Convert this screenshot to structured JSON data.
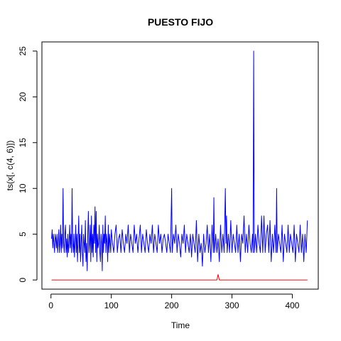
{
  "chart_data": {
    "type": "line",
    "title": "PUESTO FIJO",
    "xlabel": "Time",
    "ylabel": "ts(x[, c(4, 6)])",
    "xlim": [
      -15,
      443
    ],
    "ylim": [
      -1,
      26
    ],
    "x_ticks": [
      0,
      100,
      200,
      300,
      400
    ],
    "y_ticks": [
      0,
      5,
      10,
      15,
      20,
      25
    ],
    "n": 425,
    "series": [
      {
        "color": "#0000ff",
        "keypoints": [
          [
            1,
            4.5
          ],
          [
            2,
            5.5
          ],
          [
            3,
            3.5
          ],
          [
            4,
            5
          ],
          [
            5,
            4
          ],
          [
            6,
            3
          ],
          [
            7,
            5
          ],
          [
            8,
            4.5
          ],
          [
            9,
            3.5
          ],
          [
            10,
            5
          ],
          [
            11,
            3
          ],
          [
            12,
            4
          ],
          [
            13,
            5.5
          ],
          [
            14,
            3
          ],
          [
            15,
            4
          ],
          [
            16,
            6
          ],
          [
            17,
            3
          ],
          [
            18,
            5
          ],
          [
            19,
            3.5
          ],
          [
            20,
            10
          ],
          [
            21,
            4
          ],
          [
            22,
            3
          ],
          [
            23,
            5
          ],
          [
            24,
            6
          ],
          [
            25,
            3
          ],
          [
            26,
            4.5
          ],
          [
            27,
            2.5
          ],
          [
            28,
            5
          ],
          [
            29,
            3
          ],
          [
            30,
            4
          ],
          [
            31,
            6
          ],
          [
            32,
            3.5
          ],
          [
            33,
            5
          ],
          [
            34,
            3
          ],
          [
            35,
            10
          ],
          [
            36,
            4
          ],
          [
            37,
            3
          ],
          [
            38,
            5
          ],
          [
            39,
            2.5
          ],
          [
            40,
            4
          ],
          [
            41,
            6
          ],
          [
            42,
            3
          ],
          [
            43,
            5
          ],
          [
            44,
            2
          ],
          [
            45,
            4.5
          ],
          [
            46,
            7
          ],
          [
            47,
            3
          ],
          [
            48,
            5
          ],
          [
            49,
            2
          ],
          [
            50,
            4
          ],
          [
            51,
            6
          ],
          [
            52,
            3
          ],
          [
            53,
            1.5
          ],
          [
            54,
            5
          ],
          [
            55,
            4
          ],
          [
            56,
            3
          ],
          [
            57,
            6.5
          ],
          [
            58,
            2
          ],
          [
            59,
            4
          ],
          [
            60,
            1
          ],
          [
            61,
            5
          ],
          [
            62,
            7.5
          ],
          [
            63,
            3
          ],
          [
            64,
            4
          ],
          [
            65,
            6
          ],
          [
            66,
            2
          ],
          [
            67,
            7
          ],
          [
            68,
            3
          ],
          [
            69,
            5
          ],
          [
            70,
            2.5
          ],
          [
            71,
            6
          ],
          [
            72,
            4
          ],
          [
            73,
            8
          ],
          [
            74,
            3
          ],
          [
            75,
            7.5
          ],
          [
            76,
            2
          ],
          [
            77,
            5
          ],
          [
            78,
            3.5
          ],
          [
            79,
            4
          ],
          [
            80,
            6
          ],
          [
            81,
            3
          ],
          [
            82,
            2
          ],
          [
            83,
            5
          ],
          [
            84,
            4
          ],
          [
            85,
            1
          ],
          [
            86,
            6
          ],
          [
            87,
            3
          ],
          [
            88,
            5
          ],
          [
            89,
            4
          ],
          [
            90,
            7
          ],
          [
            91,
            3
          ],
          [
            92,
            5
          ],
          [
            93,
            4
          ],
          [
            94,
            2
          ],
          [
            95,
            6
          ],
          [
            96,
            3
          ],
          [
            97,
            5
          ],
          [
            98,
            4
          ],
          [
            99,
            3
          ],
          [
            100,
            5.5
          ],
          [
            102,
            4
          ],
          [
            104,
            3
          ],
          [
            106,
            5
          ],
          [
            108,
            6
          ],
          [
            110,
            3
          ],
          [
            112,
            4.5
          ],
          [
            114,
            5
          ],
          [
            116,
            3
          ],
          [
            118,
            5.5
          ],
          [
            120,
            4
          ],
          [
            122,
            3
          ],
          [
            124,
            5
          ],
          [
            126,
            4
          ],
          [
            128,
            6
          ],
          [
            130,
            3
          ],
          [
            132,
            5
          ],
          [
            134,
            4
          ],
          [
            136,
            3
          ],
          [
            138,
            6
          ],
          [
            140,
            4
          ],
          [
            142,
            5
          ],
          [
            144,
            3
          ],
          [
            146,
            4.5
          ],
          [
            148,
            6
          ],
          [
            150,
            3
          ],
          [
            152,
            5
          ],
          [
            154,
            4
          ],
          [
            156,
            3
          ],
          [
            158,
            5.5
          ],
          [
            160,
            4
          ],
          [
            162,
            3
          ],
          [
            164,
            5
          ],
          [
            166,
            4
          ],
          [
            168,
            6
          ],
          [
            170,
            3
          ],
          [
            172,
            5
          ],
          [
            174,
            4
          ],
          [
            176,
            3
          ],
          [
            178,
            6
          ],
          [
            180,
            4
          ],
          [
            182,
            5
          ],
          [
            184,
            3
          ],
          [
            186,
            4.5
          ],
          [
            188,
            5
          ],
          [
            190,
            4
          ],
          [
            192,
            3
          ],
          [
            194,
            5
          ],
          [
            196,
            4
          ],
          [
            198,
            3
          ],
          [
            200,
            10
          ],
          [
            201,
            3
          ],
          [
            203,
            5
          ],
          [
            205,
            4
          ],
          [
            207,
            6
          ],
          [
            209,
            3
          ],
          [
            211,
            5
          ],
          [
            213,
            4
          ],
          [
            215,
            2.5
          ],
          [
            217,
            5
          ],
          [
            219,
            4
          ],
          [
            221,
            6
          ],
          [
            223,
            3
          ],
          [
            225,
            5
          ],
          [
            227,
            4
          ],
          [
            229,
            3
          ],
          [
            231,
            5
          ],
          [
            233,
            2.5
          ],
          [
            235,
            5
          ],
          [
            237,
            4
          ],
          [
            239,
            3
          ],
          [
            241,
            6.5
          ],
          [
            243,
            2
          ],
          [
            245,
            5
          ],
          [
            247,
            3
          ],
          [
            249,
            4
          ],
          [
            251,
            1.5
          ],
          [
            253,
            5
          ],
          [
            255,
            3
          ],
          [
            257,
            4
          ],
          [
            259,
            6
          ],
          [
            261,
            3
          ],
          [
            263,
            5
          ],
          [
            265,
            2
          ],
          [
            267,
            6
          ],
          [
            269,
            3
          ],
          [
            270,
            9
          ],
          [
            271,
            3
          ],
          [
            273,
            5
          ],
          [
            275,
            3
          ],
          [
            277,
            4.5
          ],
          [
            279,
            2
          ],
          [
            281,
            6
          ],
          [
            283,
            3
          ],
          [
            285,
            5
          ],
          [
            287,
            3
          ],
          [
            289,
            10
          ],
          [
            290,
            4
          ],
          [
            291,
            7
          ],
          [
            292,
            3
          ],
          [
            294,
            5
          ],
          [
            296,
            3
          ],
          [
            298,
            6.5
          ],
          [
            300,
            3
          ],
          [
            302,
            5
          ],
          [
            304,
            4
          ],
          [
            306,
            3
          ],
          [
            308,
            6
          ],
          [
            310,
            3
          ],
          [
            312,
            5
          ],
          [
            314,
            2
          ],
          [
            316,
            5
          ],
          [
            318,
            4
          ],
          [
            320,
            7
          ],
          [
            322,
            3
          ],
          [
            324,
            5
          ],
          [
            326,
            3
          ],
          [
            328,
            6
          ],
          [
            330,
            4
          ],
          [
            332,
            3
          ],
          [
            334,
            5
          ],
          [
            335,
            3
          ],
          [
            336,
            25
          ],
          [
            337,
            3
          ],
          [
            339,
            5
          ],
          [
            341,
            3
          ],
          [
            343,
            6
          ],
          [
            345,
            4
          ],
          [
            347,
            3
          ],
          [
            349,
            7
          ],
          [
            351,
            3
          ],
          [
            353,
            7
          ],
          [
            355,
            3
          ],
          [
            357,
            5
          ],
          [
            359,
            6
          ],
          [
            361,
            3
          ],
          [
            363,
            6.5
          ],
          [
            365,
            2
          ],
          [
            367,
            5
          ],
          [
            369,
            3
          ],
          [
            371,
            6
          ],
          [
            373,
            3
          ],
          [
            374,
            10
          ],
          [
            375,
            3
          ],
          [
            377,
            5
          ],
          [
            379,
            4
          ],
          [
            381,
            3
          ],
          [
            383,
            6
          ],
          [
            385,
            2
          ],
          [
            387,
            5
          ],
          [
            389,
            4
          ],
          [
            391,
            3
          ],
          [
            393,
            6
          ],
          [
            395,
            3
          ],
          [
            397,
            5
          ],
          [
            399,
            4
          ],
          [
            401,
            3
          ],
          [
            403,
            6
          ],
          [
            405,
            2
          ],
          [
            407,
            5
          ],
          [
            409,
            4
          ],
          [
            411,
            3
          ],
          [
            413,
            6
          ],
          [
            415,
            3
          ],
          [
            417,
            5
          ],
          [
            419,
            2
          ],
          [
            421,
            5
          ],
          [
            423,
            3
          ],
          [
            425,
            6.5
          ]
        ]
      },
      {
        "color": "#ff0000",
        "keypoints": [
          [
            1,
            0
          ],
          [
            275,
            0
          ],
          [
            276,
            0.3
          ],
          [
            277,
            0.6
          ],
          [
            278,
            0.3
          ],
          [
            279,
            0
          ],
          [
            425,
            0
          ]
        ]
      }
    ]
  }
}
